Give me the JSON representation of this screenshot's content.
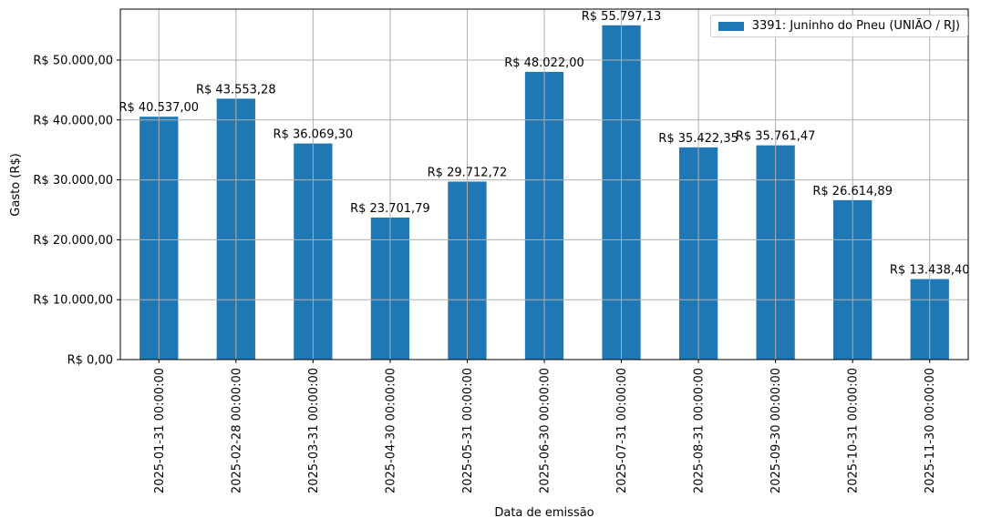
{
  "chart_data": {
    "type": "bar",
    "title": "",
    "xlabel": "Data de emissão",
    "ylabel": "Gasto (R$)",
    "ylim": [
      0,
      58500
    ],
    "grid": true,
    "legend_position": "upper right",
    "categories": [
      "2025-01-31 00:00:00",
      "2025-02-28 00:00:00",
      "2025-03-31 00:00:00",
      "2025-04-30 00:00:00",
      "2025-05-31 00:00:00",
      "2025-06-30 00:00:00",
      "2025-07-31 00:00:00",
      "2025-08-31 00:00:00",
      "2025-09-30 00:00:00",
      "2025-10-31 00:00:00",
      "2025-11-30 00:00:00"
    ],
    "series": [
      {
        "name": "3391: Juninho do Pneu (UNIÃO / RJ)",
        "color": "#1f77b4",
        "values": [
          40537.0,
          43553.28,
          36069.3,
          23701.79,
          29712.72,
          48022.0,
          55797.13,
          35422.35,
          35761.47,
          26614.89,
          13438.4
        ],
        "labels": [
          "R$ 40.537,00",
          "R$ 43.553,28",
          "R$ 36.069,30",
          "R$ 23.701,79",
          "R$ 29.712,72",
          "R$ 48.022,00",
          "R$ 55.797,13",
          "R$ 35.422,35",
          "R$ 35.761,47",
          "R$ 26.614,89",
          "R$ 13.438,40"
        ]
      }
    ],
    "yticks": [
      0,
      10000,
      20000,
      30000,
      40000,
      50000
    ],
    "ytick_labels": [
      "R$ 0,00",
      "R$ 10.000,00",
      "R$ 20.000,00",
      "R$ 30.000,00",
      "R$ 40.000,00",
      "R$ 50.000,00"
    ]
  },
  "legend": {
    "label": "3391: Juninho do Pneu (UNIÃO / RJ)",
    "color": "#1f77b4"
  },
  "axes": {
    "xlabel": "Data de emissão",
    "ylabel": "Gasto (R$)"
  }
}
